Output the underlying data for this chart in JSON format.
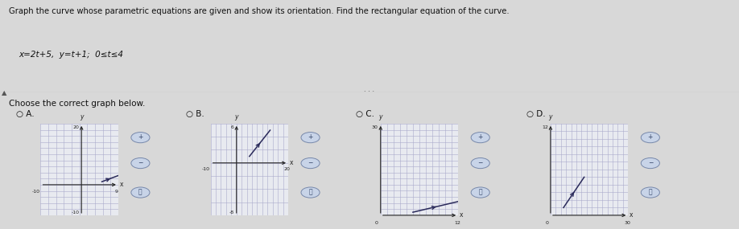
{
  "title_text": "Graph the curve whose parametric equations are given and show its orientation. Find the rectangular equation of the curve.",
  "eq_text": "x=2t+5,  y=t+1;  0≤t≤4",
  "choose_text": "Choose the correct graph below.",
  "bg_color": "#d8d8d8",
  "panel_bg": "#e8eaf0",
  "graphs": [
    {
      "label": "A.",
      "xlim": [
        -10,
        9
      ],
      "ylim": [
        -10,
        20
      ],
      "x_tick_labels": [
        "-10",
        "9"
      ],
      "y_tick_labels": [
        "20",
        "-10"
      ],
      "ytop": 20,
      "ybot": -10,
      "xleft": -10,
      "xright": 9,
      "nx_cells": 10,
      "ny_cells": 15,
      "line_color": "#2a2a5a"
    },
    {
      "label": "B.",
      "xlim": [
        -10,
        20
      ],
      "ylim": [
        -8,
        6
      ],
      "x_tick_labels": [
        "-10",
        "20"
      ],
      "y_tick_labels": [
        "6",
        "-8"
      ],
      "ytop": 6,
      "ybot": -8,
      "xleft": -10,
      "xright": 20,
      "nx_cells": 15,
      "ny_cells": 7,
      "line_color": "#2a2a5a"
    },
    {
      "label": "C.",
      "xlim": [
        0,
        12
      ],
      "ylim": [
        0,
        30
      ],
      "x_tick_labels": [
        "0",
        "12"
      ],
      "y_tick_labels": [
        "30",
        "0"
      ],
      "ytop": 30,
      "ybot": 0,
      "xleft": 0,
      "xright": 12,
      "nx_cells": 12,
      "ny_cells": 15,
      "line_color": "#2a2a5a"
    },
    {
      "label": "D.",
      "xlim": [
        0,
        30
      ],
      "ylim": [
        0,
        12
      ],
      "x_tick_labels": [
        "0",
        "30"
      ],
      "y_tick_labels": [
        "12",
        "0"
      ],
      "ytop": 12,
      "ybot": 0,
      "xleft": 0,
      "xright": 30,
      "nx_cells": 15,
      "ny_cells": 12,
      "line_color": "#2a2a5a"
    }
  ],
  "radio_color": "#555577",
  "text_color": "#111111",
  "grid_color": "#aaaacc",
  "grid_lw": 0.4
}
